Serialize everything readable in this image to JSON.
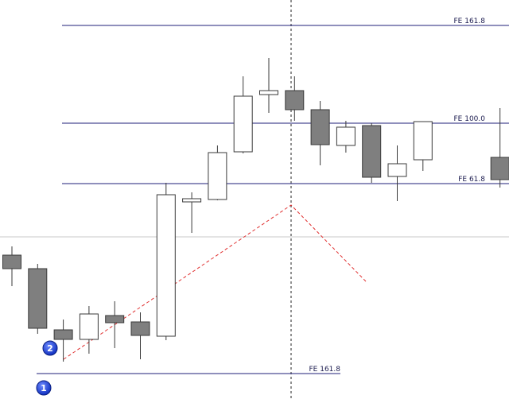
{
  "chart_data": {
    "type": "candlestick",
    "ylim": [
      0,
      502
    ],
    "up_color": "#ffffff",
    "down_color": "#7f7f7f",
    "edge_color": "#3a3a3a",
    "categories": [
      null,
      null,
      null,
      null,
      null,
      null,
      null,
      null,
      null,
      null,
      null,
      null,
      null,
      null,
      null,
      null,
      null,
      null,
      null,
      null
    ],
    "open": [
      181,
      164,
      87,
      75,
      105,
      97,
      79,
      248,
      251,
      311,
      383,
      388,
      364,
      319,
      344,
      280,
      301,
      null,
      null,
      304
    ],
    "high": [
      192,
      170,
      100,
      117,
      123,
      109,
      272,
      260,
      319,
      406,
      429,
      406,
      375,
      350,
      347,
      319,
      349,
      null,
      null,
      366
    ],
    "low": [
      142,
      82,
      47,
      57,
      64,
      50,
      74,
      209,
      250,
      309,
      360,
      350,
      294,
      310,
      272,
      249,
      287,
      null,
      null,
      266
    ],
    "close": [
      164,
      89,
      75,
      107,
      96,
      80,
      257,
      252,
      310,
      381,
      388,
      364,
      320,
      342,
      279,
      296,
      349,
      null,
      null,
      276
    ],
    "fe_lines": [
      {
        "label": "FE 161.8",
        "value": 470,
        "color": "#1f1f7a",
        "side": "right"
      },
      {
        "label": "FE 100.0",
        "value": 347,
        "color": "#1f1f7a",
        "side": "right"
      },
      {
        "label": "FE 61.8",
        "value": 271,
        "color": "#1f1f7a",
        "side": "right"
      },
      {
        "label": "FE 161.8",
        "value": 32,
        "color": "#1f1f7a",
        "side": "left"
      }
    ],
    "markers": [
      {
        "label": "2",
        "index": 1,
        "value": 64
      },
      {
        "label": "1",
        "index": 1,
        "value": 14
      }
    ]
  }
}
